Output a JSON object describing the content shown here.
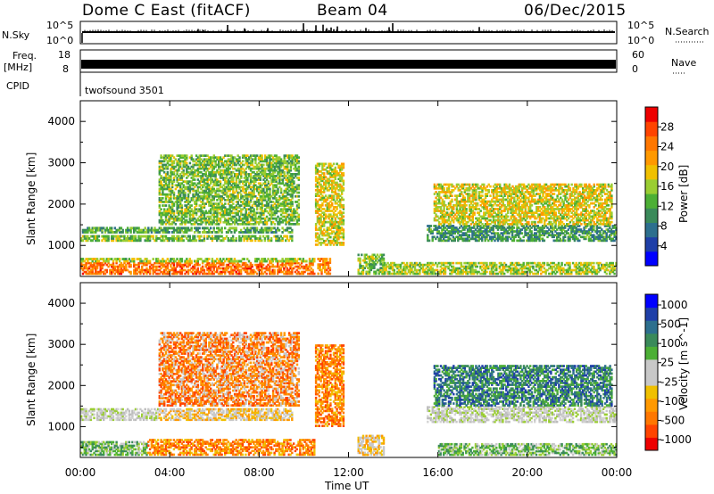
{
  "header": {
    "station": "Dome C East (fitACF)",
    "beam": "Beam 04",
    "date": "06/Dec/2015"
  },
  "top_panels": {
    "nsky_label": "N.Sky",
    "nsky_ticks": [
      "10^5",
      "10^0"
    ],
    "nsearch_label": "N.Search",
    "nsearch_ticks": [
      "10^5",
      "10^0"
    ],
    "freq_label_line1": "Freq.",
    "freq_label_line2": "[MHz]",
    "freq_ticks": [
      "18",
      "8"
    ],
    "nave_label": "Nave",
    "nave_ticks": [
      "60",
      "0"
    ],
    "cpid_label": "CPID",
    "cpid_value": "twofsound 3501"
  },
  "colors": {
    "power_scale": [
      "#0000ff",
      "#1f3fa8",
      "#2d6f8e",
      "#3a8a5a",
      "#4caf35",
      "#9acd32",
      "#f0c000",
      "#ff9900",
      "#ff7700",
      "#ff4400",
      "#ee0000"
    ],
    "velocity_scale": [
      "#ee0000",
      "#ff4400",
      "#ff7700",
      "#ff9900",
      "#f0c000",
      "#c8c8c8",
      "#c8c8c8",
      "#4caf35",
      "#3a8a5a",
      "#2d6f8e",
      "#1f3fa8",
      "#0000ff"
    ]
  },
  "chart_data": [
    {
      "type": "heatmap",
      "name": "power",
      "xlabel": "",
      "ylabel": "Slant Range [km]",
      "x_ticks": [
        "00:00",
        "04:00",
        "08:00",
        "12:00",
        "16:00",
        "20:00",
        "00:00"
      ],
      "y_ticks": [
        1000,
        2000,
        3000,
        4000
      ],
      "ylim": [
        250,
        4500
      ],
      "xlim": [
        0,
        24
      ],
      "colorbar_label": "Power [dB]",
      "colorbar_ticks": [
        4,
        8,
        12,
        16,
        20,
        24,
        28
      ],
      "colorbar_range": [
        0,
        32
      ],
      "regions": [
        {
          "t": [
            0,
            10.5
          ],
          "r": [
            300,
            600
          ],
          "v": 26
        },
        {
          "t": [
            0,
            10.5
          ],
          "r": [
            600,
            700
          ],
          "v": 16
        },
        {
          "t": [
            0,
            9.5
          ],
          "r": [
            1100,
            1250
          ],
          "v": 14
        },
        {
          "t": [
            0,
            9.5
          ],
          "r": [
            1300,
            1450
          ],
          "v": 12
        },
        {
          "t": [
            3.5,
            9.8
          ],
          "r": [
            1500,
            3200
          ],
          "v": 14
        },
        {
          "t": [
            10.5,
            11.8
          ],
          "r": [
            1000,
            3000
          ],
          "v": 18
        },
        {
          "t": [
            10.6,
            11.2
          ],
          "r": [
            300,
            700
          ],
          "v": 24
        },
        {
          "t": [
            12.4,
            13.6
          ],
          "r": [
            300,
            800
          ],
          "v": 14
        },
        {
          "t": [
            13.5,
            24
          ],
          "r": [
            300,
            600
          ],
          "v": 16
        },
        {
          "t": [
            15.5,
            24
          ],
          "r": [
            1100,
            1500
          ],
          "v": 10
        },
        {
          "t": [
            15.8,
            23.8
          ],
          "r": [
            1500,
            2500
          ],
          "v": 18
        }
      ]
    },
    {
      "type": "heatmap",
      "name": "velocity",
      "xlabel": "Time UT",
      "ylabel": "Slant Range [km]",
      "x_ticks": [
        "00:00",
        "04:00",
        "08:00",
        "12:00",
        "16:00",
        "20:00",
        "00:00"
      ],
      "y_ticks": [
        1000,
        2000,
        3000,
        4000
      ],
      "ylim": [
        250,
        4500
      ],
      "xlim": [
        0,
        24
      ],
      "colorbar_label": "Velocity [m s^-1]",
      "colorbar_ticks": [
        "1000",
        "500",
        "100",
        "25",
        "-25",
        "-100",
        "-500",
        "-1000"
      ],
      "regions": [
        {
          "t": [
            0,
            3
          ],
          "r": [
            300,
            650
          ],
          "v": "green"
        },
        {
          "t": [
            3,
            10.5
          ],
          "r": [
            300,
            700
          ],
          "v": "orange"
        },
        {
          "t": [
            0,
            3.5
          ],
          "r": [
            1150,
            1450
          ],
          "v": "gray"
        },
        {
          "t": [
            3.5,
            9.5
          ],
          "r": [
            1150,
            1450
          ],
          "v": "gray-orange"
        },
        {
          "t": [
            3.5,
            9.8
          ],
          "r": [
            1500,
            3300
          ],
          "v": "orange-gray"
        },
        {
          "t": [
            10.5,
            11.8
          ],
          "r": [
            1000,
            3000
          ],
          "v": "orange"
        },
        {
          "t": [
            12.4,
            13.6
          ],
          "r": [
            300,
            800
          ],
          "v": "gray-orange"
        },
        {
          "t": [
            15.5,
            24
          ],
          "r": [
            1100,
            1500
          ],
          "v": "gray"
        },
        {
          "t": [
            15.8,
            23.8
          ],
          "r": [
            1500,
            2500
          ],
          "v": "blue-green"
        },
        {
          "t": [
            16,
            24
          ],
          "r": [
            300,
            600
          ],
          "v": "green"
        }
      ]
    }
  ]
}
